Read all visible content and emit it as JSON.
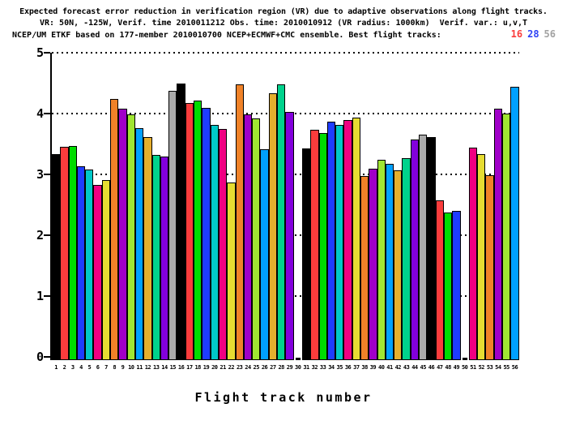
{
  "title": {
    "line1": "Expected forecast error reduction in verification region (VR) due to adaptive observations along flight tracks.",
    "line2": "VR: 50N, -125W, Verif. time 2010011212 Obs. time: 2010010912 (VR radius: 1000km)  Verif. var.: u,v,T",
    "line3": "NCEP/UM ETKF based on 177-member 2010010700 NCEP+ECMWF+CMC ensemble. Best flight tracks:",
    "best_tracks": [
      {
        "label": "16",
        "color": "#fa3c3c"
      },
      {
        "label": "28",
        "color": "#2e42f5"
      },
      {
        "label": "56",
        "color": "#a2a2a2"
      }
    ]
  },
  "chart_data": {
    "type": "bar",
    "title": "Expected forecast error reduction in VR due to adaptive observations along flight tracks",
    "xlabel": "Flight track number",
    "ylabel": "",
    "ylim": [
      0,
      5
    ],
    "yticks": [
      0,
      1,
      2,
      3,
      4,
      5
    ],
    "grid": "dotted horizontal lines at y=1..5",
    "legend": "none",
    "categories": [
      "1",
      "2",
      "3",
      "4",
      "5",
      "6",
      "7",
      "8",
      "9",
      "10",
      "11",
      "12",
      "13",
      "14",
      "15",
      "16",
      "17",
      "18",
      "19",
      "20",
      "21",
      "22",
      "23",
      "24",
      "25",
      "26",
      "27",
      "28",
      "29",
      "30",
      "31",
      "32",
      "33",
      "34",
      "35",
      "36",
      "37",
      "38",
      "39",
      "40",
      "41",
      "42",
      "43",
      "44",
      "45",
      "46",
      "47",
      "48",
      "49",
      "50",
      "51",
      "52",
      "53",
      "54",
      "55",
      "56"
    ],
    "values": [
      3.33,
      3.45,
      3.47,
      3.14,
      3.08,
      2.83,
      2.91,
      4.24,
      4.08,
      3.99,
      3.76,
      3.62,
      3.32,
      3.3,
      4.38,
      4.5,
      4.18,
      4.21,
      4.1,
      3.81,
      3.75,
      2.87,
      4.48,
      3.99,
      3.92,
      3.41,
      4.34,
      4.48,
      4.03,
      0,
      3.43,
      3.73,
      3.68,
      3.87,
      3.82,
      3.9,
      3.93,
      2.98,
      3.09,
      3.24,
      3.18,
      3.07,
      3.27,
      3.57,
      3.65,
      3.62,
      2.57,
      2.38,
      2.4,
      0,
      3.44,
      3.33,
      2.99,
      4.08,
      4.0,
      4.44
    ],
    "palette_cycle_15": [
      "#000000",
      "#fa3c3c",
      "#00dc00",
      "#1e3cff",
      "#00c8c8",
      "#f00082",
      "#e6dc32",
      "#f08228",
      "#a000c8",
      "#a0e632",
      "#00a0ff",
      "#e6af2d",
      "#00d28c",
      "#8200dc",
      "#aaaaaa"
    ],
    "notes": "bar n uses palette_cycle_15[(n-1) mod 15]; bars 30 and 50 have zero height"
  }
}
